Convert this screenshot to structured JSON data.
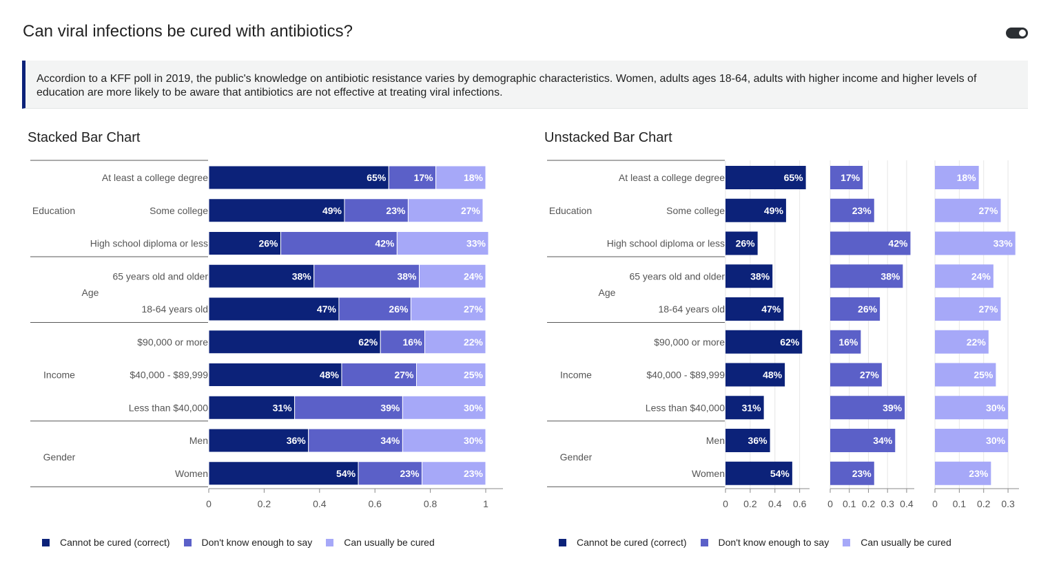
{
  "page": {
    "title": "Can viral infections be cured with antibiotics?",
    "description": "Accordion to a KFF poll in 2019, the public's knowledge on antibiotic resistance varies by demographic characteristics. Women, adults ages 18-64, adults with higher income and higher levels of education are more likely to be aware that antibiotics are not effective at treating viral infections."
  },
  "colors": {
    "cannot": "#0c2279",
    "dontknow": "#5b60c8",
    "usually": "#a6a8f8"
  },
  "chart_data": [
    {
      "type": "bar",
      "orientation": "horizontal",
      "stacked": true,
      "title": "Stacked Bar Chart",
      "groups": [
        {
          "name": "Education",
          "categories": [
            "At least a college degree",
            "Some college",
            "High school diploma or less"
          ]
        },
        {
          "name": "Age",
          "categories": [
            "65 years old and older",
            "18-64 years old"
          ]
        },
        {
          "name": "Income",
          "categories": [
            "$90,000 or more",
            "$40,000 - $89,999",
            "Less than $40,000"
          ]
        },
        {
          "name": "Gender",
          "categories": [
            "Men",
            "Women"
          ]
        }
      ],
      "series": [
        {
          "name": "Cannot be cured (correct)",
          "values": [
            0.65,
            0.49,
            0.26,
            0.38,
            0.47,
            0.62,
            0.48,
            0.31,
            0.36,
            0.54
          ],
          "labels": [
            "65%",
            "49%",
            "26%",
            "38%",
            "47%",
            "62%",
            "48%",
            "31%",
            "36%",
            "54%"
          ]
        },
        {
          "name": "Don't know enough to say",
          "values": [
            0.17,
            0.23,
            0.42,
            0.38,
            0.26,
            0.16,
            0.27,
            0.39,
            0.34,
            0.23
          ],
          "labels": [
            "17%",
            "23%",
            "42%",
            "38%",
            "26%",
            "16%",
            "27%",
            "39%",
            "34%",
            "23%"
          ]
        },
        {
          "name": "Can usually be cured",
          "values": [
            0.18,
            0.27,
            0.33,
            0.24,
            0.27,
            0.22,
            0.25,
            0.3,
            0.3,
            0.23
          ],
          "labels": [
            "18%",
            "27%",
            "33%",
            "24%",
            "27%",
            "22%",
            "25%",
            "30%",
            "30%",
            "23%"
          ]
        }
      ],
      "xlim": [
        0,
        1
      ],
      "xticks": [
        "0",
        "0.2",
        "0.4",
        "0.6",
        "0.8",
        "1"
      ],
      "legend": "bottom"
    },
    {
      "type": "bar",
      "orientation": "horizontal",
      "stacked": false,
      "title": "Unstacked Bar Chart",
      "groups": [
        {
          "name": "Education",
          "categories": [
            "At least a college degree",
            "Some college",
            "High school diploma or less"
          ]
        },
        {
          "name": "Age",
          "categories": [
            "65 years old and older",
            "18-64 years old"
          ]
        },
        {
          "name": "Income",
          "categories": [
            "$90,000 or more",
            "$40,000 - $89,999",
            "Less than $40,000"
          ]
        },
        {
          "name": "Gender",
          "categories": [
            "Men",
            "Women"
          ]
        }
      ],
      "series": [
        {
          "name": "Cannot be cured (correct)",
          "values": [
            0.65,
            0.49,
            0.26,
            0.38,
            0.47,
            0.62,
            0.48,
            0.31,
            0.36,
            0.54
          ],
          "labels": [
            "65%",
            "49%",
            "26%",
            "38%",
            "47%",
            "62%",
            "48%",
            "31%",
            "36%",
            "54%"
          ],
          "xlim": [
            0,
            0.68
          ],
          "xticks": [
            "0",
            "0.2",
            "0.4",
            "0.6"
          ]
        },
        {
          "name": "Don't know enough to say",
          "values": [
            0.17,
            0.23,
            0.42,
            0.38,
            0.26,
            0.16,
            0.27,
            0.39,
            0.34,
            0.23
          ],
          "labels": [
            "17%",
            "23%",
            "42%",
            "38%",
            "26%",
            "16%",
            "27%",
            "39%",
            "34%",
            "23%"
          ],
          "xlim": [
            0,
            0.44
          ],
          "xticks": [
            "0",
            "0.1",
            "0.2",
            "0.3",
            "0.4"
          ]
        },
        {
          "name": "Can usually be cured",
          "values": [
            0.18,
            0.27,
            0.33,
            0.24,
            0.27,
            0.22,
            0.25,
            0.3,
            0.3,
            0.23
          ],
          "labels": [
            "18%",
            "27%",
            "33%",
            "24%",
            "27%",
            "22%",
            "25%",
            "30%",
            "30%",
            "23%"
          ],
          "xlim": [
            0,
            0.345
          ],
          "xticks": [
            "0",
            "0.1",
            "0.2",
            "0.3"
          ]
        }
      ],
      "legend": "bottom"
    }
  ]
}
